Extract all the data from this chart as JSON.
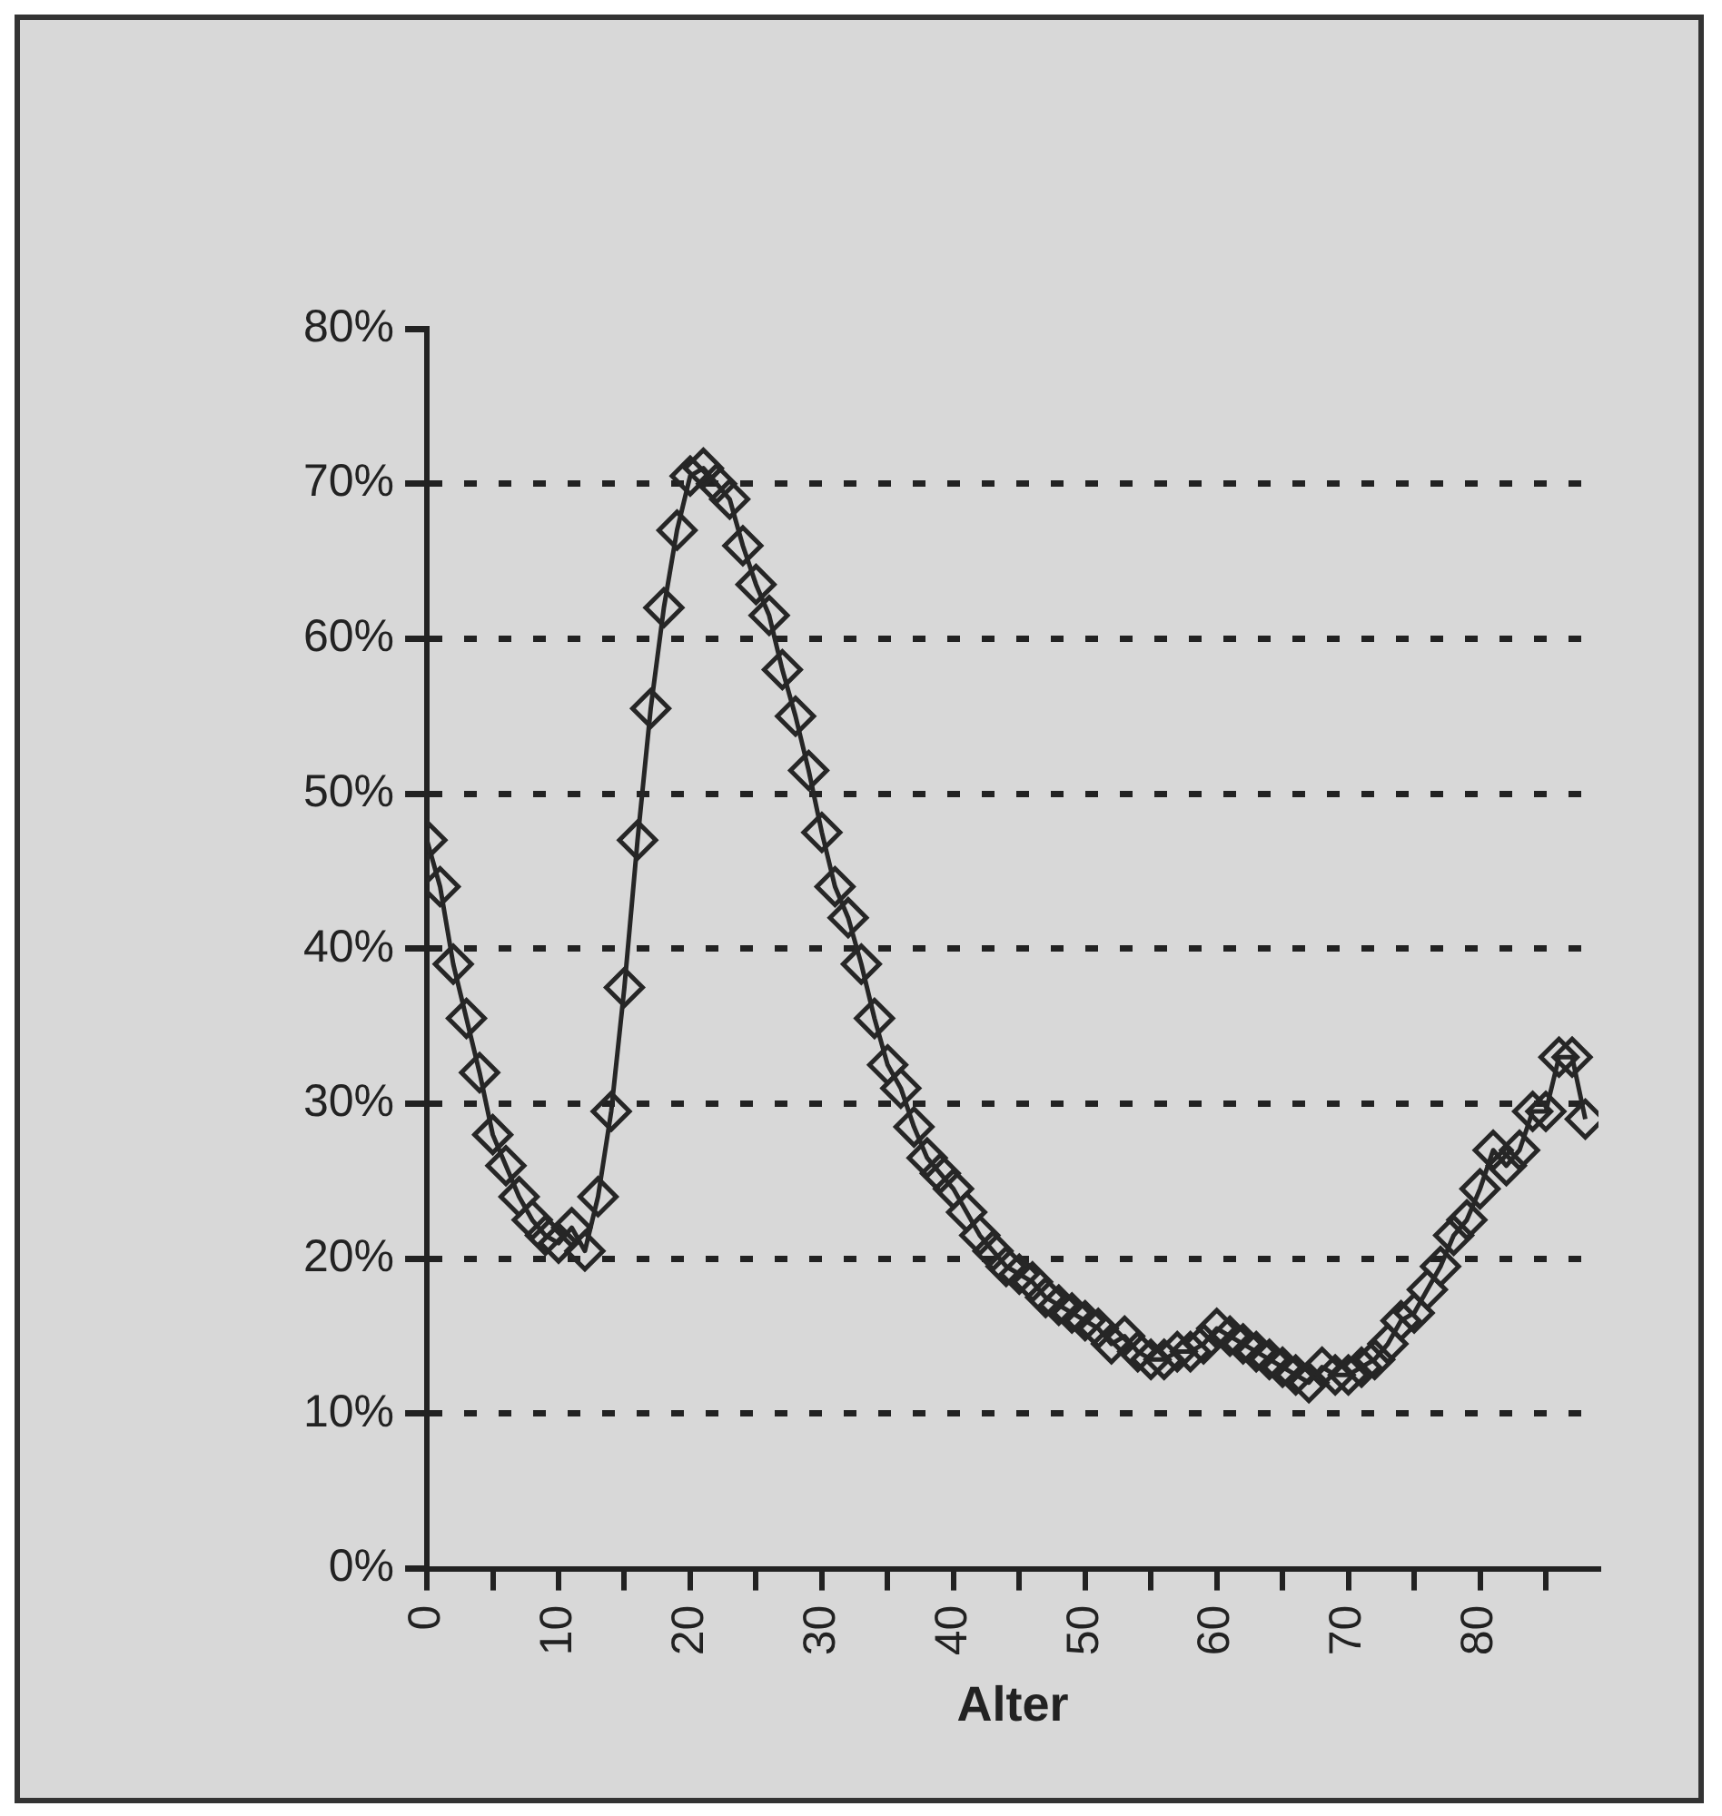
{
  "chart_data": {
    "type": "line",
    "xlabel": "Alter",
    "x": [
      0,
      1,
      2,
      3,
      4,
      5,
      6,
      7,
      8,
      9,
      10,
      11,
      12,
      13,
      14,
      15,
      16,
      17,
      18,
      19,
      20,
      21,
      22,
      23,
      24,
      25,
      26,
      27,
      28,
      29,
      30,
      31,
      32,
      33,
      34,
      35,
      36,
      37,
      38,
      39,
      40,
      41,
      42,
      43,
      44,
      45,
      46,
      47,
      48,
      49,
      50,
      51,
      52,
      53,
      54,
      55,
      56,
      57,
      58,
      59,
      60,
      61,
      62,
      63,
      64,
      65,
      66,
      67,
      68,
      69,
      70,
      71,
      72,
      73,
      74,
      75,
      76,
      77,
      78,
      79,
      80,
      81,
      82,
      83,
      84,
      85,
      86,
      87,
      88
    ],
    "series": [
      {
        "color": "#262626",
        "values": [
          47,
          44,
          39,
          35.5,
          32,
          28,
          26,
          24,
          22.5,
          21.5,
          21,
          22,
          20.5,
          24,
          29.5,
          37.5,
          47,
          55.5,
          62,
          67,
          70.5,
          71,
          70,
          69,
          66,
          63.5,
          61.5,
          58,
          55,
          51.5,
          47.5,
          44,
          42,
          39,
          35.5,
          32.5,
          31,
          28.5,
          26.5,
          25.5,
          24.5,
          23,
          21.5,
          20.5,
          19.5,
          19,
          18.5,
          17.5,
          17,
          16.5,
          16,
          15.5,
          14.5,
          15,
          14,
          13.5,
          13.5,
          14,
          14,
          14.5,
          15.5,
          15,
          14.5,
          14,
          13.5,
          13,
          12.5,
          12,
          13,
          12.5,
          12.5,
          13,
          13.5,
          14.5,
          16,
          16.5,
          18,
          19.5,
          21.5,
          22.5,
          24.5,
          27,
          26,
          27,
          29.5,
          29.5,
          33,
          33,
          29
        ]
      }
    ],
    "xlim": [
      0,
      89
    ],
    "xticks": [
      0,
      {
        "value": 5,
        "label": null
      },
      10,
      {
        "value": 15,
        "label": null
      },
      20,
      {
        "value": 25,
        "label": null
      },
      30,
      {
        "value": 35,
        "label": null
      },
      40,
      {
        "value": 45,
        "label": null
      },
      50,
      {
        "value": 55,
        "label": null
      },
      60,
      {
        "value": 65,
        "label": null
      },
      70,
      {
        "value": 75,
        "label": null
      },
      80,
      {
        "value": 85,
        "label": null
      }
    ],
    "ylim": [
      0,
      80
    ],
    "yticks": [
      {
        "value": 0,
        "label": "0%"
      },
      {
        "value": 10,
        "label": "10%"
      },
      {
        "value": 20,
        "label": "20%"
      },
      {
        "value": 30,
        "label": "30%"
      },
      {
        "value": 40,
        "label": "40%"
      },
      {
        "value": 50,
        "label": "50%"
      },
      {
        "value": 60,
        "label": "60%"
      },
      {
        "value": 70,
        "label": "70%"
      },
      {
        "value": 80,
        "label": "80%"
      }
    ],
    "grid": "y",
    "marker": "diamond",
    "line_style": "solid",
    "legend": false
  }
}
